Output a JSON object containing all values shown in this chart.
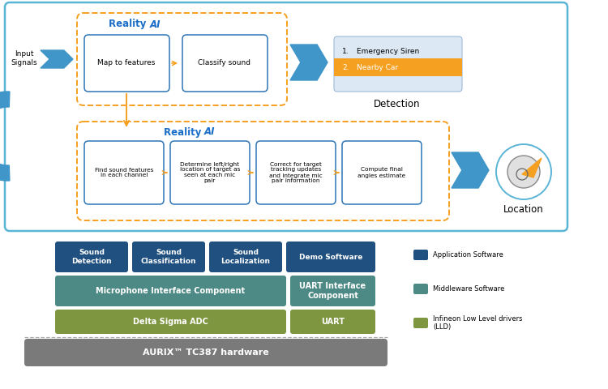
{
  "bg_color": "#ffffff",
  "light_blue_border": "#5ab4d6",
  "box_blue_border": "#2e75b6",
  "orange": "#f5a020",
  "arrow_blue": "#4096c8",
  "detection_box_fill": "#dce9f5",
  "detection_box_border": "#9dbad9",
  "reality_ai_color": "#1a6ec8",
  "app_blue": "#1f5080",
  "teal": "#4e8a85",
  "olive": "#7f9640",
  "gray_hw": "#7a7a7a",
  "top_box_text": [
    "Map to features",
    "Classify sound"
  ],
  "bottom_box_text": [
    "Find sound features\nin each channel",
    "Determine left/right\nlocation of target as\nseen at each mic\npair",
    "Correct for target\ntracking updates\nand integrate mic\npair information",
    "Compute final\nangles estimate"
  ],
  "app_layer_text": [
    "Sound\nDetection",
    "Sound\nClassification",
    "Sound\nLocalization",
    "Demo Software"
  ],
  "hw_layer_text": "AURIX™ TC387 hardware",
  "legend_items": [
    {
      "label": "Application Software",
      "color": "#1f5080"
    },
    {
      "label": "Middleware Software",
      "color": "#4e8a85"
    },
    {
      "label": "Infineon Low Level drivers\n(LLD)",
      "color": "#7f9640"
    }
  ]
}
